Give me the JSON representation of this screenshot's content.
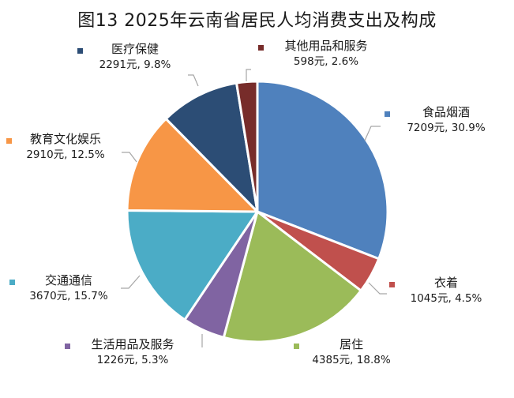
{
  "title": "图13  2025年云南省居民人均消费支出及构成",
  "chart_data": {
    "type": "pie",
    "title": "图13  2025年云南省居民人均消费支出及构成",
    "unit": "元",
    "start_angle_deg": 0,
    "direction": "clockwise",
    "legend_position": "data labels with leader lines",
    "categories": [
      "食品烟酒",
      "衣着",
      "居住",
      "生活用品及服务",
      "交通通信",
      "教育文化娱乐",
      "医疗保健",
      "其他用品和服务"
    ],
    "values": [
      7209,
      1045,
      4385,
      1226,
      3670,
      2910,
      2291,
      598
    ],
    "percents": [
      30.9,
      4.5,
      18.8,
      5.3,
      15.7,
      12.5,
      9.8,
      2.6
    ],
    "colors": [
      "#4F81BD",
      "#C0504D",
      "#9BBB59",
      "#8064A2",
      "#4BACC6",
      "#F79646",
      "#2C4D75",
      "#772C2A"
    ]
  },
  "labels": [
    {
      "name": "食品烟酒",
      "value_text": "7209元, 30.9%"
    },
    {
      "name": "衣着",
      "value_text": "1045元, 4.5%"
    },
    {
      "name": "居住",
      "value_text": "4385元, 18.8%"
    },
    {
      "name": "生活用品及服务",
      "value_text": "1226元, 5.3%"
    },
    {
      "name": "交通通信",
      "value_text": "3670元, 15.7%"
    },
    {
      "name": "教育文化娱乐",
      "value_text": "2910元, 12.5%"
    },
    {
      "name": "医疗保健",
      "value_text": "2291元, 9.8%"
    },
    {
      "name": "其他用品和服务",
      "value_text": "598元, 2.6%"
    }
  ]
}
